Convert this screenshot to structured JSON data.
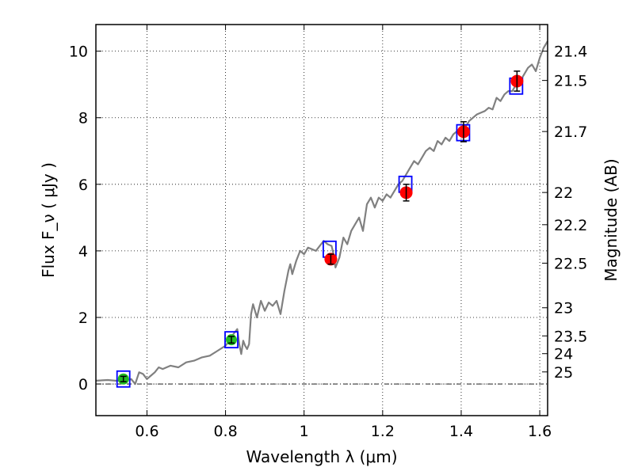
{
  "chart_data": {
    "type": "scatter",
    "xlabel": "Wavelength  λ (μm)",
    "ylabel": "Flux  F_ν  ( μJy )",
    "y2label": "Magnitude (AB)",
    "xlim": [
      0.47,
      1.62
    ],
    "ylim": [
      -0.95,
      10.8
    ],
    "grid": true,
    "x_ticks": [
      0.6,
      0.8,
      1.0,
      1.2,
      1.4,
      1.6
    ],
    "x_tick_labels": [
      "0.6",
      "0.8",
      "1",
      "1.2",
      "1.4",
      "1.6"
    ],
    "y_ticks": [
      0,
      2,
      4,
      6,
      8,
      10
    ],
    "y_tick_labels": [
      "0",
      "2",
      "4",
      "6",
      "8",
      "10"
    ],
    "y2_tick_labels": [
      "21.4",
      "21.5",
      "21.7",
      "22",
      "22.2",
      "22.5",
      "23",
      "23.5",
      "24",
      "25"
    ],
    "colors": {
      "spectrum": "#808080",
      "model_box": "#0000ff",
      "green_point": "#22bb22",
      "red_point": "#ff0000",
      "errorbar": "#000000",
      "zero_line": "#000000"
    },
    "model_points": [
      {
        "x": 0.54,
        "y": 0.15
      },
      {
        "x": 0.815,
        "y": 1.33
      },
      {
        "x": 1.065,
        "y": 4.05
      },
      {
        "x": 1.258,
        "y": 6.0
      },
      {
        "x": 1.405,
        "y": 7.55
      },
      {
        "x": 1.54,
        "y": 8.95
      }
    ],
    "green_points": [
      {
        "x": 0.54,
        "y": 0.15,
        "err": 0.08
      },
      {
        "x": 0.815,
        "y": 1.33,
        "err": 0.1
      }
    ],
    "red_points": [
      {
        "x": 1.068,
        "y": 3.75,
        "err": 0.15
      },
      {
        "x": 1.26,
        "y": 5.75,
        "err": 0.25
      },
      {
        "x": 1.406,
        "y": 7.58,
        "err": 0.3
      },
      {
        "x": 1.542,
        "y": 9.1,
        "err": 0.3
      }
    ],
    "spectrum": {
      "x": [
        0.47,
        0.5,
        0.52,
        0.54,
        0.56,
        0.57,
        0.58,
        0.59,
        0.6,
        0.61,
        0.62,
        0.63,
        0.64,
        0.65,
        0.66,
        0.68,
        0.7,
        0.72,
        0.73,
        0.74,
        0.76,
        0.78,
        0.8,
        0.81,
        0.82,
        0.83,
        0.835,
        0.84,
        0.845,
        0.85,
        0.855,
        0.86,
        0.865,
        0.87,
        0.88,
        0.89,
        0.9,
        0.91,
        0.92,
        0.93,
        0.935,
        0.94,
        0.95,
        0.96,
        0.965,
        0.97,
        0.98,
        0.99,
        1.0,
        1.01,
        1.02,
        1.03,
        1.04,
        1.05,
        1.06,
        1.07,
        1.075,
        1.08,
        1.09,
        1.1,
        1.11,
        1.12,
        1.13,
        1.14,
        1.15,
        1.16,
        1.17,
        1.18,
        1.19,
        1.2,
        1.21,
        1.22,
        1.23,
        1.24,
        1.25,
        1.26,
        1.27,
        1.28,
        1.29,
        1.3,
        1.31,
        1.32,
        1.33,
        1.34,
        1.35,
        1.36,
        1.37,
        1.38,
        1.39,
        1.4,
        1.41,
        1.42,
        1.43,
        1.44,
        1.45,
        1.46,
        1.47,
        1.48,
        1.49,
        1.5,
        1.51,
        1.52,
        1.53,
        1.54,
        1.55,
        1.56,
        1.57,
        1.58,
        1.59,
        1.6,
        1.61,
        1.62
      ],
      "y": [
        0.1,
        0.12,
        0.1,
        0.1,
        0.15,
        0.0,
        0.35,
        0.3,
        0.15,
        0.25,
        0.35,
        0.5,
        0.45,
        0.5,
        0.55,
        0.5,
        0.65,
        0.7,
        0.75,
        0.8,
        0.85,
        1.0,
        1.15,
        1.3,
        1.5,
        1.65,
        1.2,
        0.9,
        1.3,
        1.15,
        1.05,
        1.2,
        2.1,
        2.4,
        2.0,
        2.5,
        2.2,
        2.45,
        2.35,
        2.5,
        2.3,
        2.1,
        2.8,
        3.4,
        3.6,
        3.3,
        3.7,
        4.0,
        3.9,
        4.1,
        4.05,
        4.0,
        4.15,
        4.3,
        4.2,
        4.15,
        3.9,
        3.5,
        3.8,
        4.4,
        4.2,
        4.6,
        4.8,
        5.0,
        4.6,
        5.4,
        5.6,
        5.3,
        5.6,
        5.5,
        5.7,
        5.6,
        5.8,
        6.0,
        6.1,
        6.3,
        6.5,
        6.7,
        6.6,
        6.8,
        7.0,
        7.1,
        7.0,
        7.3,
        7.2,
        7.4,
        7.3,
        7.5,
        7.6,
        7.6,
        7.7,
        7.9,
        8.0,
        8.1,
        8.15,
        8.2,
        8.3,
        8.25,
        8.6,
        8.5,
        8.7,
        8.8,
        8.8,
        9.0,
        9.1,
        9.3,
        9.5,
        9.6,
        9.4,
        9.8,
        10.1,
        10.3
      ]
    }
  }
}
